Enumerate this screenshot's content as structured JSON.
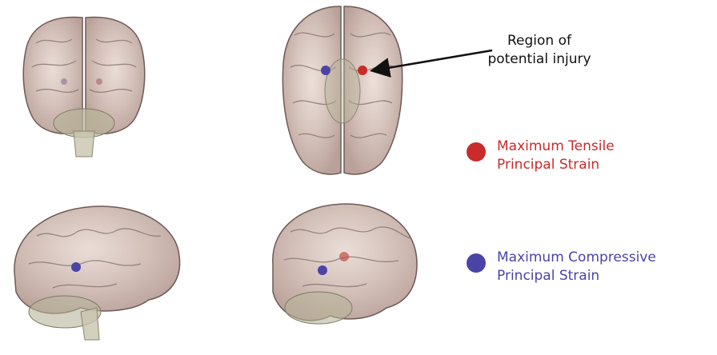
{
  "callout": {
    "line1": "Region of",
    "line2": "potential injury"
  },
  "legend": {
    "tensile": {
      "line1": "Maximum Tensile",
      "line2": "Principal Strain",
      "color": "#c92b2b"
    },
    "compressive": {
      "line1": "Maximum Compressive",
      "line2": "Principal Strain",
      "color": "#4a44a6"
    }
  },
  "colors": {
    "brain_fill": "#c9aaa0",
    "brain_outline": "#6e5a56",
    "gyri": "#7d6762",
    "cerebellum": "#b8b49a",
    "brainstem": "#c8c4ad"
  }
}
